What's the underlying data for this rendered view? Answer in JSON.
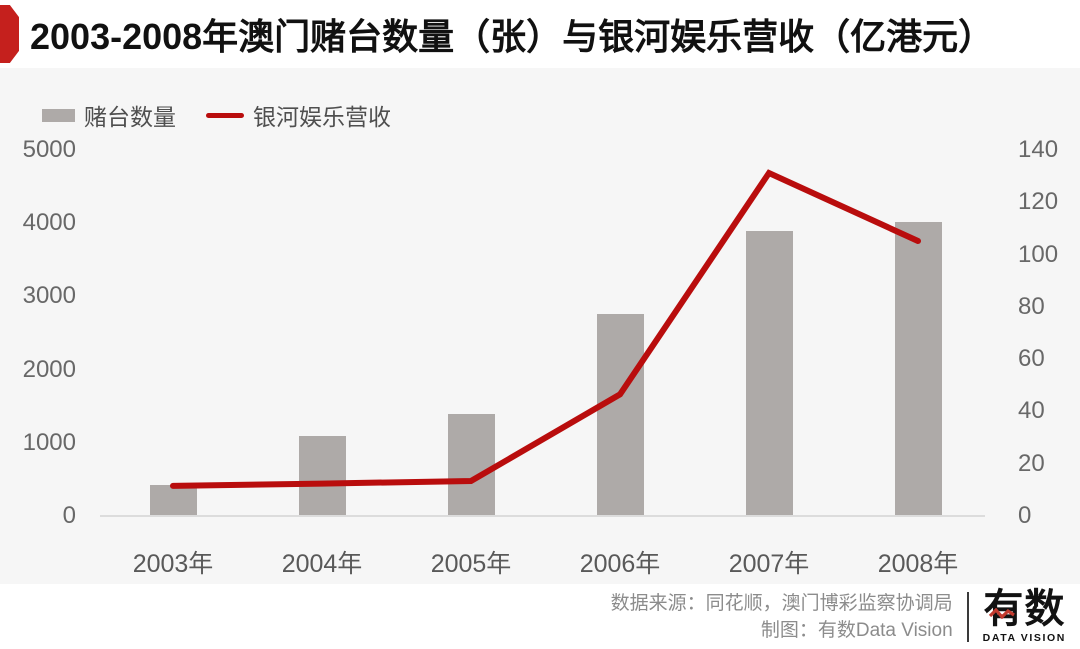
{
  "header": {
    "title": "2003-2008年澳门赌台数量（张）与银河娱乐营收（亿港元）",
    "badge_color": "#c5201d"
  },
  "legend": {
    "bar_label": "赌台数量",
    "line_label": "银河娱乐营收"
  },
  "chart_data": {
    "type": "bar+line combo",
    "categories": [
      "2003年",
      "2004年",
      "2005年",
      "2006年",
      "2007年",
      "2008年"
    ],
    "series": [
      {
        "name": "赌台数量",
        "type": "bar",
        "axis": "left",
        "color": "#aeaaa8",
        "values": [
          424,
          1092,
          1388,
          2762,
          3900,
          4017
        ]
      },
      {
        "name": "银河娱乐营收",
        "type": "line",
        "axis": "right",
        "color": "#b90d0d",
        "values": [
          11.5,
          12.4,
          13.4,
          46.5,
          131.2,
          105.2
        ]
      }
    ],
    "left_axis": {
      "ticks": [
        0,
        1000,
        2000,
        3000,
        4000,
        5000
      ],
      "range": [
        0,
        5000
      ]
    },
    "right_axis": {
      "ticks": [
        0,
        20,
        40,
        60,
        80,
        100,
        120,
        140
      ],
      "range": [
        0,
        140
      ]
    },
    "grid": false,
    "legend_position": "top-left",
    "title": "2003-2008年澳门赌台数量（张）与银河娱乐营收（亿港元）"
  },
  "footer": {
    "source_line": "数据来源：同花顺，澳门博彩监察协调局",
    "credit_line": "制图：有数Data Vision",
    "logo": {
      "name_text": "有数",
      "subtext": "DATA VISION",
      "zigzag_color": "#c23a2e"
    }
  }
}
